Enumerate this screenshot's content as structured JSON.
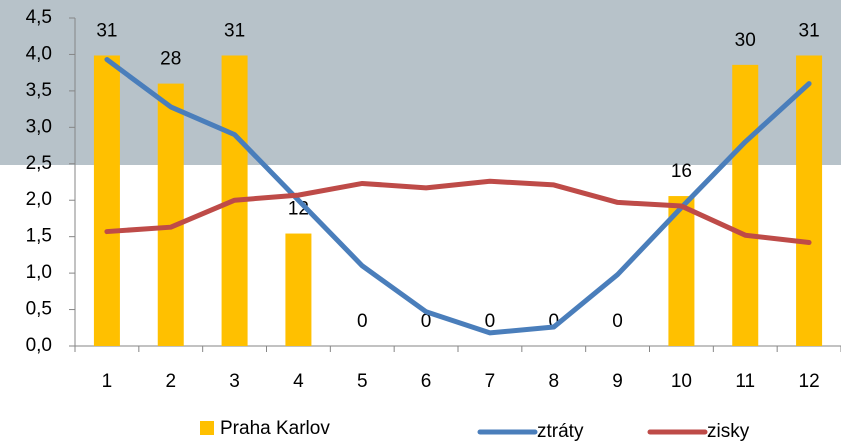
{
  "chart_data": {
    "type": "bar_line",
    "categories": [
      "1",
      "2",
      "3",
      "4",
      "5",
      "6",
      "7",
      "8",
      "9",
      "10",
      "11",
      "12"
    ],
    "series": [
      {
        "name": "Praha Karlov",
        "type": "bar",
        "axis": "y2",
        "color": "#ffc000",
        "values": [
          31,
          28,
          31,
          12,
          0,
          0,
          0,
          0,
          0,
          16,
          30,
          31
        ]
      },
      {
        "name": "ztráty",
        "type": "line",
        "color": "#4a7ebb",
        "values": [
          3.93,
          3.28,
          2.9,
          2.0,
          1.1,
          0.47,
          0.18,
          0.26,
          0.98,
          1.9,
          2.8,
          3.6
        ]
      },
      {
        "name": "zisky",
        "type": "line",
        "color": "#be4b48",
        "values": [
          1.57,
          1.63,
          2.0,
          2.07,
          2.23,
          2.17,
          2.26,
          2.21,
          1.97,
          1.92,
          1.52,
          1.42
        ]
      }
    ],
    "ylim": [
      0,
      4.5
    ],
    "yticks": [
      {
        "value": 0,
        "label": "0,0"
      },
      {
        "value": 0.5,
        "label": "0,5"
      },
      {
        "value": 1,
        "label": "1,0"
      },
      {
        "value": 1.5,
        "label": "1,5"
      },
      {
        "value": 2,
        "label": "2,0"
      },
      {
        "value": 2.5,
        "label": "2,5"
      },
      {
        "value": 3,
        "label": "3,0"
      },
      {
        "value": 3.5,
        "label": "3,5"
      },
      {
        "value": 4,
        "label": "4,0"
      },
      {
        "value": 4.5,
        "label": "4,5"
      }
    ],
    "y2lim": [
      0,
      35
    ],
    "legend": "bottom"
  }
}
